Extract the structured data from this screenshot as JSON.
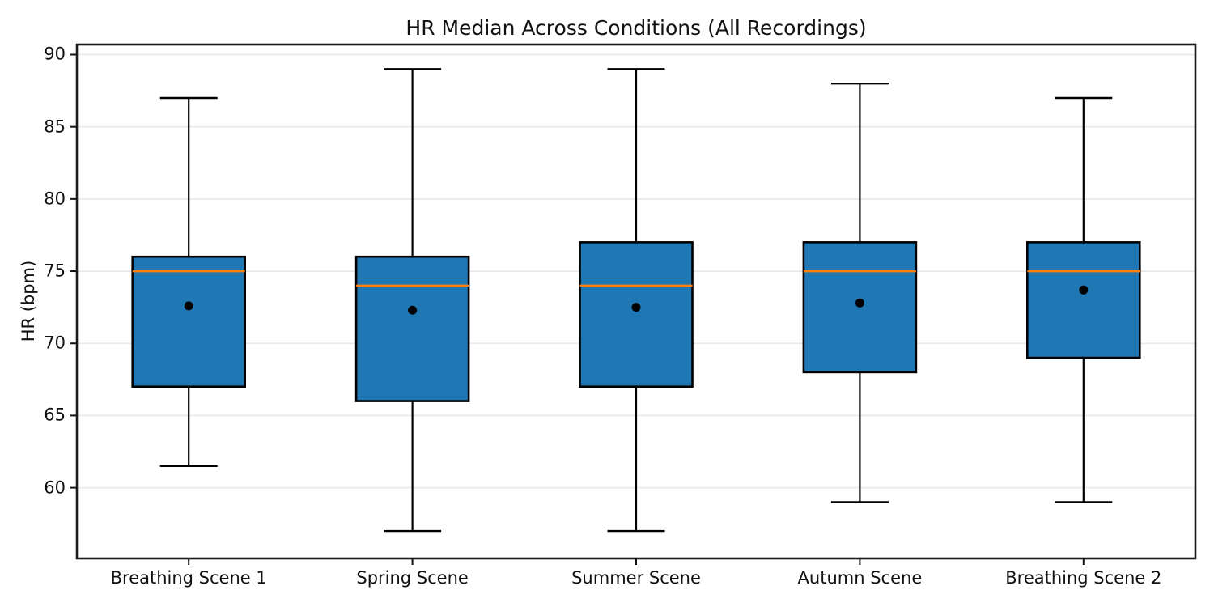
{
  "chart_data": {
    "type": "boxplot",
    "title": "HR Median Across Conditions (All Recordings)",
    "ylabel": "HR (bpm)",
    "xlabel": "",
    "categories": [
      "Breathing Scene 1",
      "Spring Scene",
      "Summer Scene",
      "Autumn Scene",
      "Breathing Scene 2"
    ],
    "yticks": [
      60,
      65,
      70,
      75,
      80,
      85,
      90
    ],
    "ylim": [
      55.1,
      90.7
    ],
    "grid": "horizontal-light",
    "legend": "none",
    "colors": {
      "box_fill": "#1f77b4",
      "box_edge": "#000000",
      "median_line": "#ff7f0e",
      "whisker": "#000000",
      "mean_marker": "#000000",
      "gridline": "#eaeaea",
      "frame": "#1a1a1a"
    },
    "series": [
      {
        "label": "Breathing Scene 1",
        "whisker_low": 61.5,
        "q1": 67,
        "median": 75,
        "q3": 76,
        "whisker_high": 87,
        "mean": 72.6
      },
      {
        "label": "Spring Scene",
        "whisker_low": 57,
        "q1": 66,
        "median": 74,
        "q3": 76,
        "whisker_high": 89,
        "mean": 72.3
      },
      {
        "label": "Summer Scene",
        "whisker_low": 57,
        "q1": 67,
        "median": 74,
        "q3": 77,
        "whisker_high": 89,
        "mean": 72.5
      },
      {
        "label": "Autumn Scene",
        "whisker_low": 59,
        "q1": 68,
        "median": 75,
        "q3": 77,
        "whisker_high": 88,
        "mean": 72.8
      },
      {
        "label": "Breathing Scene 2",
        "whisker_low": 59,
        "q1": 69,
        "median": 75,
        "q3": 77,
        "whisker_high": 87,
        "mean": 73.7
      }
    ]
  }
}
